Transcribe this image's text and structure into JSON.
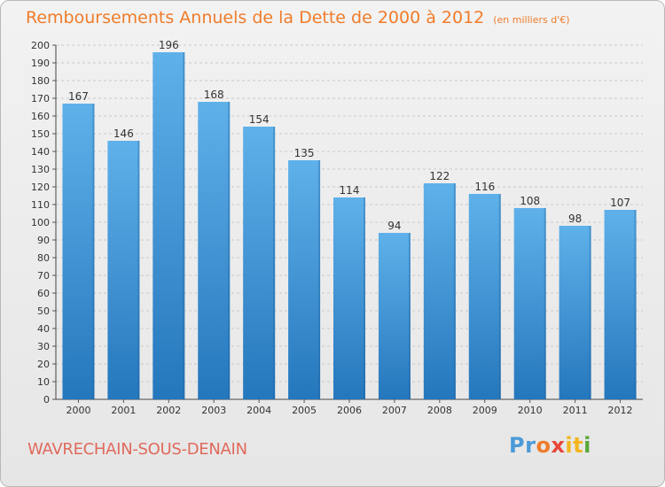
{
  "header": {
    "title": "Remboursements Annuels de la Dette de 2000 à 2012",
    "subtitle": "(en milliers d'€)"
  },
  "footer": {
    "place": "WAVRECHAIN-SOUS-DENAIN",
    "logo": {
      "letters": [
        "P",
        "r",
        "o",
        "x",
        "i",
        "t",
        "i"
      ],
      "colors": [
        "#4a9ad8",
        "#4a9ad8",
        "#f07c2a",
        "#e8463a",
        "#f2b51c",
        "#f2b51c",
        "#5aa83a"
      ]
    }
  },
  "chart_data": {
    "type": "bar",
    "categories": [
      "2000",
      "2001",
      "2002",
      "2003",
      "2004",
      "2005",
      "2006",
      "2007",
      "2008",
      "2009",
      "2010",
      "2011",
      "2012"
    ],
    "values": [
      167,
      146,
      196,
      168,
      154,
      135,
      114,
      94,
      122,
      116,
      108,
      98,
      107
    ],
    "ylim": [
      0,
      200
    ],
    "ytick_step": 10,
    "grid": true,
    "bar_color_top": "#5fb1ea",
    "bar_color_bottom": "#2577bd"
  }
}
